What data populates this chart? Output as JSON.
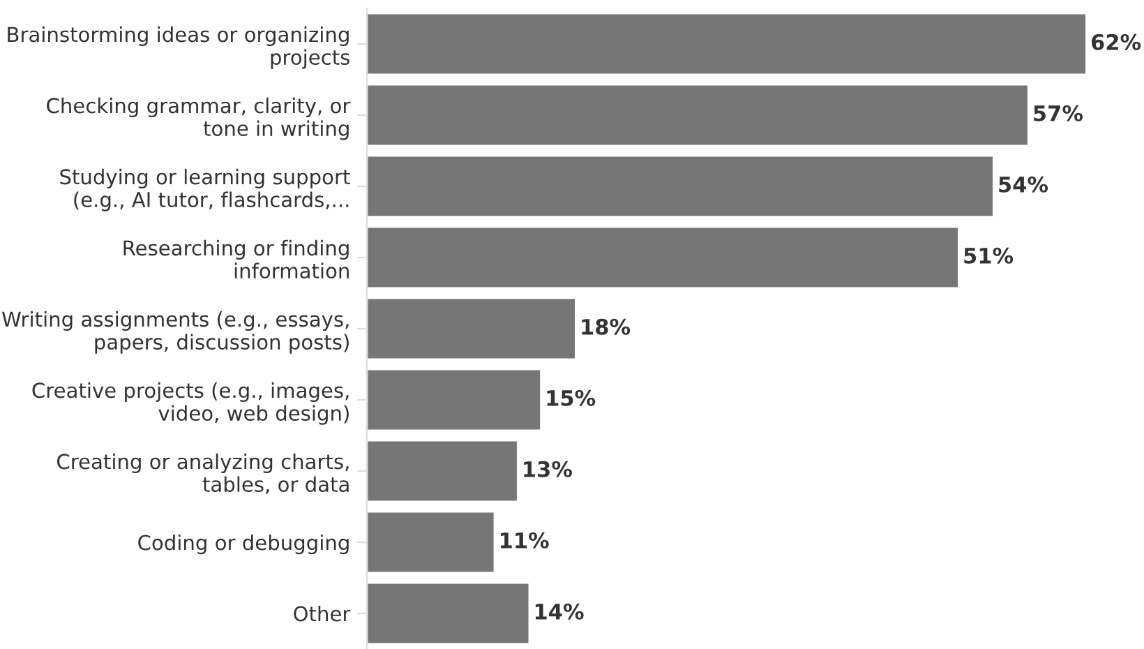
{
  "chart_data": {
    "type": "bar",
    "orientation": "horizontal",
    "categories": [
      "Brainstorming ideas or organizing\nprojects",
      "Checking grammar, clarity, or\ntone in writing",
      "Studying or learning support\n(e.g., AI tutor, flashcards,...",
      "Researching or finding\ninformation",
      "Writing assignments (e.g., essays,\npapers, discussion posts)",
      "Creative projects (e.g., images,\nvideo, web design)",
      "Creating or analyzing charts,\ntables, or data",
      "Coding or debugging",
      "Other"
    ],
    "values": [
      62,
      57,
      54,
      51,
      18,
      15,
      13,
      11,
      14
    ],
    "value_labels": [
      "62%",
      "57%",
      "54%",
      "51%",
      "18%",
      "15%",
      "13%",
      "11%",
      "14%"
    ],
    "color": "#767676",
    "tick_labels": "y",
    "grid": false,
    "legend": false
  }
}
